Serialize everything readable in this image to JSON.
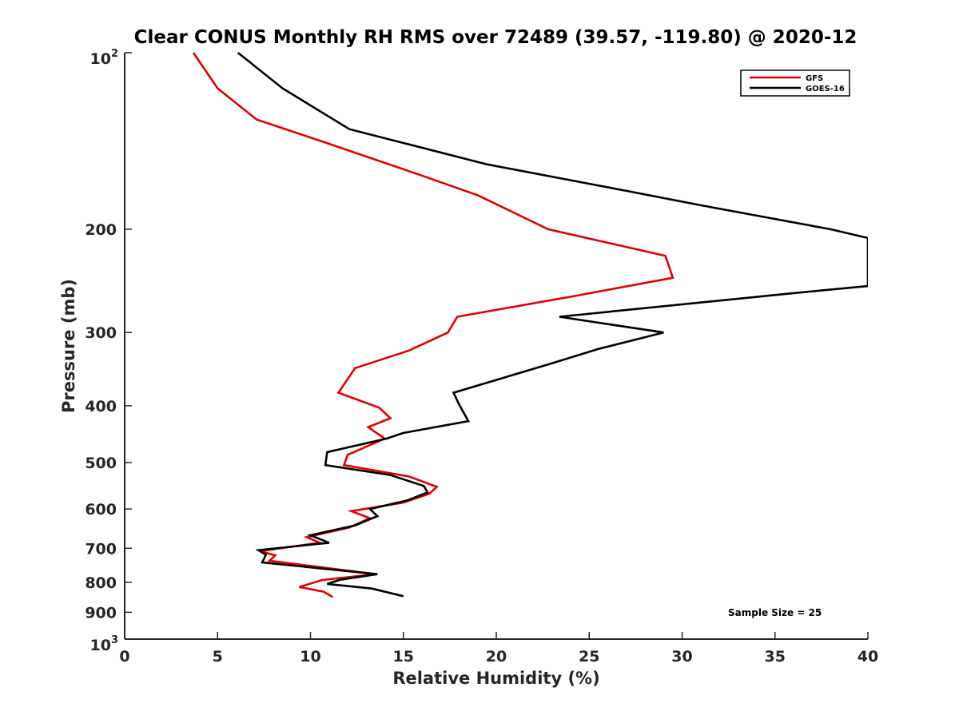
{
  "chart_data": {
    "type": "line",
    "title": "Clear CONUS Monthly RH RMS over 72489 (39.57, -119.80) @ 2020-12",
    "xlabel": "Relative Humidity (%)",
    "ylabel": "Pressure (mb)",
    "xlim": [
      0,
      40
    ],
    "ylim": [
      100,
      1000
    ],
    "yscale": "log",
    "y_reversed": true,
    "xticks": [
      0,
      5,
      10,
      15,
      20,
      25,
      30,
      35,
      40
    ],
    "xtick_labels": [
      "0",
      "5",
      "10",
      "15",
      "20",
      "25",
      "30",
      "35",
      "40"
    ],
    "yticks": [
      {
        "value": 100,
        "base": "10",
        "exp": "2"
      },
      {
        "value": 200,
        "label": "200"
      },
      {
        "value": 300,
        "label": "300"
      },
      {
        "value": 400,
        "label": "400"
      },
      {
        "value": 500,
        "label": "500"
      },
      {
        "value": 600,
        "label": "600"
      },
      {
        "value": 700,
        "label": "700"
      },
      {
        "value": 800,
        "label": "800"
      },
      {
        "value": 900,
        "label": "900"
      },
      {
        "value": 1000,
        "base": "10",
        "exp": "3"
      }
    ],
    "legend_position": "top-right",
    "annotation": "Sample Size = 25",
    "series": [
      {
        "name": "GFS",
        "color": "#e00000",
        "points": [
          [
            3.7,
            100
          ],
          [
            5.0,
            115
          ],
          [
            7.1,
            130
          ],
          [
            11.0,
            143
          ],
          [
            16.0,
            162
          ],
          [
            19.0,
            175
          ],
          [
            22.8,
            200
          ],
          [
            29.1,
            222
          ],
          [
            29.5,
            242
          ],
          [
            24.2,
            260
          ],
          [
            17.9,
            282
          ],
          [
            17.4,
            300
          ],
          [
            15.3,
            322
          ],
          [
            12.4,
            345
          ],
          [
            11.5,
            380
          ],
          [
            13.7,
            403
          ],
          [
            14.3,
            420
          ],
          [
            13.1,
            435
          ],
          [
            14.0,
            455
          ],
          [
            12.0,
            485
          ],
          [
            11.8,
            505
          ],
          [
            15.3,
            528
          ],
          [
            16.8,
            550
          ],
          [
            16.4,
            565
          ],
          [
            15.0,
            585
          ],
          [
            12.2,
            605
          ],
          [
            13.2,
            622
          ],
          [
            12.1,
            645
          ],
          [
            9.8,
            670
          ],
          [
            10.5,
            685
          ],
          [
            7.3,
            708
          ],
          [
            8.1,
            720
          ],
          [
            7.8,
            735
          ],
          [
            13.5,
            775
          ],
          [
            10.6,
            793
          ],
          [
            9.4,
            815
          ],
          [
            10.7,
            830
          ],
          [
            11.2,
            848
          ]
        ]
      },
      {
        "name": "GOES-16",
        "color": "#000000",
        "points": [
          [
            6.1,
            100
          ],
          [
            8.5,
            115
          ],
          [
            12.1,
            135
          ],
          [
            19.5,
            155
          ],
          [
            27.0,
            172
          ],
          [
            31.0,
            182
          ],
          [
            38.0,
            200
          ],
          [
            40.0,
            207
          ],
          [
            40.0,
            250
          ],
          [
            36.0,
            257
          ],
          [
            23.4,
            282
          ],
          [
            29.0,
            300
          ],
          [
            25.5,
            320
          ],
          [
            22.8,
            340
          ],
          [
            17.7,
            380
          ],
          [
            18.0,
            398
          ],
          [
            18.5,
            425
          ],
          [
            15.0,
            445
          ],
          [
            14.1,
            455
          ],
          [
            10.9,
            480
          ],
          [
            10.8,
            505
          ],
          [
            14.3,
            525
          ],
          [
            16.1,
            548
          ],
          [
            16.3,
            562
          ],
          [
            15.2,
            580
          ],
          [
            13.2,
            600
          ],
          [
            13.6,
            617
          ],
          [
            12.4,
            640
          ],
          [
            10.0,
            665
          ],
          [
            11.0,
            685
          ],
          [
            7.2,
            705
          ],
          [
            7.6,
            718
          ],
          [
            7.4,
            740
          ],
          [
            13.6,
            775
          ],
          [
            11.6,
            792
          ],
          [
            10.9,
            805
          ],
          [
            13.3,
            820
          ],
          [
            15.0,
            845
          ]
        ]
      }
    ]
  }
}
